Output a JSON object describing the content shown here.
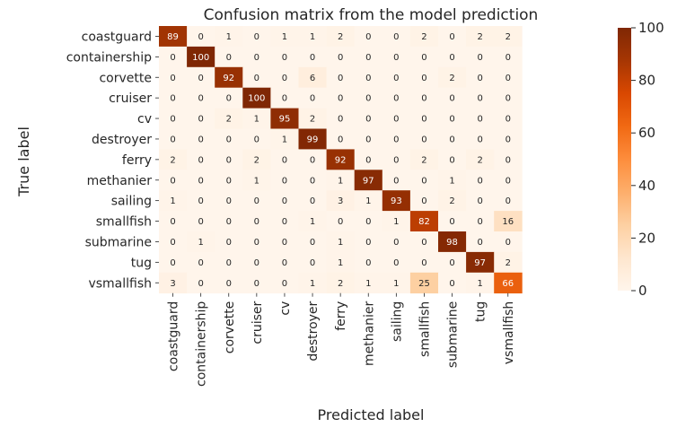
{
  "chart_data": {
    "type": "heatmap",
    "title": "Confusion matrix from the model prediction",
    "xlabel": "Predicted label",
    "ylabel": "True label",
    "x_categories": [
      "coastguard",
      "containership",
      "corvette",
      "cruiser",
      "cv",
      "destroyer",
      "ferry",
      "methanier",
      "sailing",
      "smallfish",
      "submarine",
      "tug",
      "vsmallfish"
    ],
    "y_categories": [
      "coastguard",
      "containership",
      "corvette",
      "cruiser",
      "cv",
      "destroyer",
      "ferry",
      "methanier",
      "sailing",
      "smallfish",
      "submarine",
      "tug",
      "vsmallfish"
    ],
    "values": [
      [
        89,
        0,
        1,
        0,
        1,
        1,
        2,
        0,
        0,
        2,
        0,
        2,
        2
      ],
      [
        0,
        100,
        0,
        0,
        0,
        0,
        0,
        0,
        0,
        0,
        0,
        0,
        0
      ],
      [
        0,
        0,
        92,
        0,
        0,
        6,
        0,
        0,
        0,
        0,
        2,
        0,
        0
      ],
      [
        0,
        0,
        0,
        100,
        0,
        0,
        0,
        0,
        0,
        0,
        0,
        0,
        0
      ],
      [
        0,
        0,
        2,
        1,
        95,
        2,
        0,
        0,
        0,
        0,
        0,
        0,
        0
      ],
      [
        0,
        0,
        0,
        0,
        1,
        99,
        0,
        0,
        0,
        0,
        0,
        0,
        0
      ],
      [
        2,
        0,
        0,
        2,
        0,
        0,
        92,
        0,
        0,
        2,
        0,
        2,
        0
      ],
      [
        0,
        0,
        0,
        1,
        0,
        0,
        1,
        97,
        0,
        0,
        1,
        0,
        0
      ],
      [
        1,
        0,
        0,
        0,
        0,
        0,
        3,
        1,
        93,
        0,
        2,
        0,
        0
      ],
      [
        0,
        0,
        0,
        0,
        0,
        1,
        0,
        0,
        1,
        82,
        0,
        0,
        16
      ],
      [
        0,
        1,
        0,
        0,
        0,
        0,
        1,
        0,
        0,
        0,
        98,
        0,
        0
      ],
      [
        0,
        0,
        0,
        0,
        0,
        0,
        1,
        0,
        0,
        0,
        0,
        97,
        2
      ],
      [
        3,
        0,
        0,
        0,
        0,
        1,
        2,
        1,
        1,
        25,
        0,
        1,
        66
      ]
    ],
    "colorbar": {
      "min": 0,
      "max": 100,
      "ticks": [
        0,
        20,
        40,
        60,
        80,
        100
      ],
      "colormap": "Oranges"
    },
    "colors": {
      "low": "#fff5eb",
      "high": "#7f2704"
    },
    "grid": false
  }
}
